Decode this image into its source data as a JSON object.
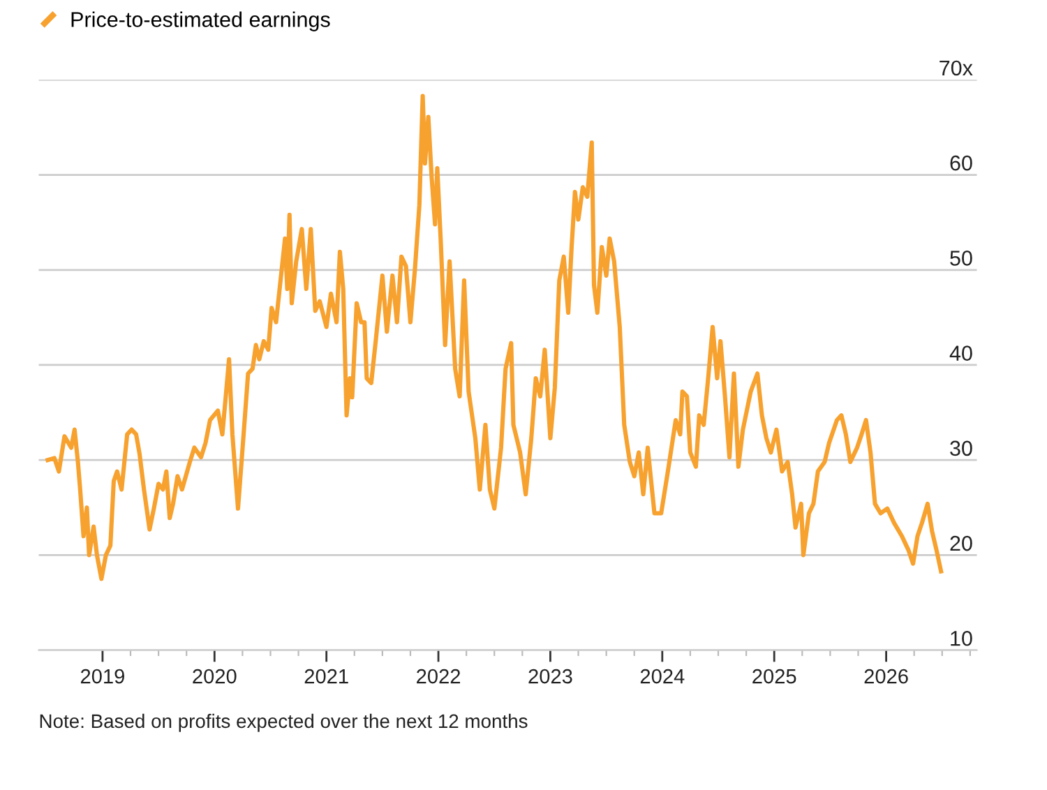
{
  "chart_data": {
    "type": "line",
    "legend": "top left",
    "grid": "y",
    "marker": "none",
    "line_style": "solid",
    "xlim": [
      2018.43,
      2026.81
    ],
    "ylim": [
      10,
      70
    ],
    "xticks": [
      2019,
      {
        "value": 2019.25,
        "label": null
      },
      {
        "value": 2019.5,
        "label": null
      },
      {
        "value": 2019.75,
        "label": null
      },
      2020,
      {
        "value": 2020.25,
        "label": null
      },
      {
        "value": 2020.5,
        "label": null
      },
      {
        "value": 2020.75,
        "label": null
      },
      2021,
      {
        "value": 2021.25,
        "label": null
      },
      {
        "value": 2021.5,
        "label": null
      },
      {
        "value": 2021.75,
        "label": null
      },
      2022,
      {
        "value": 2022.25,
        "label": null
      },
      {
        "value": 2022.5,
        "label": null
      },
      {
        "value": 2022.75,
        "label": null
      },
      2023,
      {
        "value": 2023.25,
        "label": null
      },
      {
        "value": 2023.5,
        "label": null
      },
      {
        "value": 2023.75,
        "label": null
      },
      2024,
      {
        "value": 2024.25,
        "label": null
      },
      {
        "value": 2024.5,
        "label": null
      },
      {
        "value": 2024.75,
        "label": null
      },
      2025,
      {
        "value": 2025.25,
        "label": null
      },
      {
        "value": 2025.5,
        "label": null
      },
      {
        "value": 2025.75,
        "label": null
      },
      2026,
      {
        "value": 2026.25,
        "label": null
      },
      {
        "value": 2026.5,
        "label": null
      },
      {
        "value": 2026.75,
        "label": null
      }
    ],
    "yticks": [
      10,
      20,
      30,
      40,
      50,
      60,
      {
        "value": 70,
        "label": "70x"
      }
    ],
    "annotations": [
      "Note: Based on profits expected over the next 12 months"
    ],
    "series": [
      {
        "name": "Price-to-estimated earnings",
        "color": "#f7a12f",
        "x": [
          2018.51,
          2018.57,
          2018.61,
          2018.66,
          2018.72,
          2018.75,
          2018.78,
          2018.8,
          2018.83,
          2018.86,
          2018.88,
          2018.92,
          2018.95,
          2018.99,
          2019.03,
          2019.07,
          2019.1,
          2019.13,
          2019.17,
          2019.22,
          2019.26,
          2019.3,
          2019.33,
          2019.37,
          2019.42,
          2019.46,
          2019.5,
          2019.54,
          2019.57,
          2019.6,
          2019.63,
          2019.67,
          2019.71,
          2019.78,
          2019.82,
          2019.88,
          2019.92,
          2019.96,
          2020.03,
          2020.07,
          2020.1,
          2020.13,
          2020.16,
          2020.21,
          2020.26,
          2020.3,
          2020.34,
          2020.37,
          2020.4,
          2020.44,
          2020.48,
          2020.51,
          2020.55,
          2020.59,
          2020.63,
          2020.65,
          2020.67,
          2020.69,
          2020.73,
          2020.78,
          2020.82,
          2020.86,
          2020.9,
          2020.94,
          2021.0,
          2021.04,
          2021.09,
          2021.12,
          2021.15,
          2021.18,
          2021.21,
          2021.23,
          2021.27,
          2021.31,
          2021.34,
          2021.36,
          2021.4,
          2021.44,
          2021.5,
          2021.54,
          2021.59,
          2021.63,
          2021.67,
          2021.71,
          2021.75,
          2021.79,
          2021.83,
          2021.86,
          2021.88,
          2021.91,
          2021.94,
          2021.97,
          2021.99,
          2022.02,
          2022.06,
          2022.1,
          2022.15,
          2022.19,
          2022.23,
          2022.27,
          2022.33,
          2022.37,
          2022.42,
          2022.46,
          2022.5,
          2022.56,
          2022.6,
          2022.65,
          2022.67,
          2022.73,
          2022.78,
          2022.83,
          2022.87,
          2022.91,
          2022.95,
          2023.0,
          2023.04,
          2023.08,
          2023.12,
          2023.16,
          2023.19,
          2023.22,
          2023.25,
          2023.29,
          2023.33,
          2023.37,
          2023.39,
          2023.42,
          2023.46,
          2023.5,
          2023.53,
          2023.57,
          2023.62,
          2023.66,
          2023.71,
          2023.75,
          2023.79,
          2023.83,
          2023.87,
          2023.93,
          2023.99,
          2024.05,
          2024.12,
          2024.16,
          2024.18,
          2024.22,
          2024.25,
          2024.3,
          2024.33,
          2024.37,
          2024.41,
          2024.45,
          2024.49,
          2024.52,
          2024.56,
          2024.6,
          2024.64,
          2024.68,
          2024.72,
          2024.79,
          2024.85,
          2024.89,
          2024.93,
          2024.97,
          2025.02,
          2025.07,
          2025.12,
          2025.16,
          2025.19,
          2025.24,
          2025.26,
          2025.31,
          2025.35,
          2025.39,
          2025.45,
          2025.49,
          2025.56,
          2025.6,
          2025.64,
          2025.68,
          2025.74,
          2025.78,
          2025.82,
          2025.86,
          2025.9,
          2025.95,
          2026.01,
          2026.07,
          2026.14,
          2026.2,
          2026.24,
          2026.28,
          2026.32,
          2026.37,
          2026.41,
          2026.45,
          2026.49
        ],
        "values": [
          30.0,
          30.2,
          28.8,
          32.5,
          31.3,
          33.2,
          29.8,
          26.9,
          22.0,
          25.0,
          20.0,
          23.0,
          20.0,
          17.5,
          20.0,
          21.0,
          27.8,
          28.8,
          26.9,
          32.7,
          33.2,
          32.7,
          30.7,
          26.9,
          22.7,
          25.0,
          27.5,
          26.9,
          28.8,
          23.9,
          25.4,
          28.3,
          26.9,
          29.8,
          31.3,
          30.3,
          31.8,
          34.2,
          35.2,
          32.7,
          36.6,
          40.6,
          32.7,
          24.9,
          32.7,
          39.1,
          39.6,
          42.1,
          40.6,
          42.5,
          41.6,
          46.0,
          44.5,
          48.9,
          53.3,
          48.0,
          55.8,
          46.5,
          50.9,
          54.3,
          48.0,
          54.3,
          45.7,
          46.7,
          44.0,
          47.5,
          44.5,
          51.9,
          48.0,
          34.7,
          38.6,
          36.6,
          46.5,
          44.5,
          44.5,
          38.6,
          38.1,
          42.5,
          49.4,
          43.5,
          49.4,
          44.5,
          51.4,
          50.4,
          44.5,
          50.0,
          56.8,
          68.3,
          61.2,
          66.1,
          59.7,
          54.8,
          60.7,
          53.3,
          42.1,
          50.9,
          39.6,
          36.7,
          48.9,
          37.2,
          32.3,
          26.9,
          33.7,
          26.9,
          24.9,
          31.3,
          39.6,
          42.3,
          33.7,
          30.8,
          26.4,
          32.3,
          38.6,
          36.7,
          41.6,
          32.3,
          37.6,
          48.9,
          51.4,
          45.5,
          52.4,
          58.2,
          55.3,
          58.7,
          57.7,
          63.4,
          48.4,
          45.5,
          52.4,
          49.4,
          53.3,
          50.9,
          44.0,
          33.7,
          29.8,
          28.3,
          30.8,
          26.4,
          31.3,
          24.4,
          24.4,
          28.8,
          34.2,
          32.7,
          37.2,
          36.7,
          30.8,
          29.3,
          34.7,
          33.7,
          38.6,
          44.0,
          38.6,
          42.5,
          36.7,
          30.3,
          39.1,
          29.3,
          33.2,
          37.2,
          39.1,
          34.7,
          32.3,
          30.8,
          33.2,
          28.8,
          29.8,
          26.4,
          22.9,
          25.4,
          20.0,
          24.4,
          25.4,
          28.8,
          29.8,
          31.8,
          34.2,
          34.7,
          32.7,
          29.8,
          31.3,
          32.7,
          34.2,
          30.8,
          25.4,
          24.4,
          24.9,
          23.4,
          22.0,
          20.5,
          19.1,
          22.0,
          23.4,
          25.4,
          22.5,
          20.5,
          18.3
        ]
      }
    ]
  }
}
